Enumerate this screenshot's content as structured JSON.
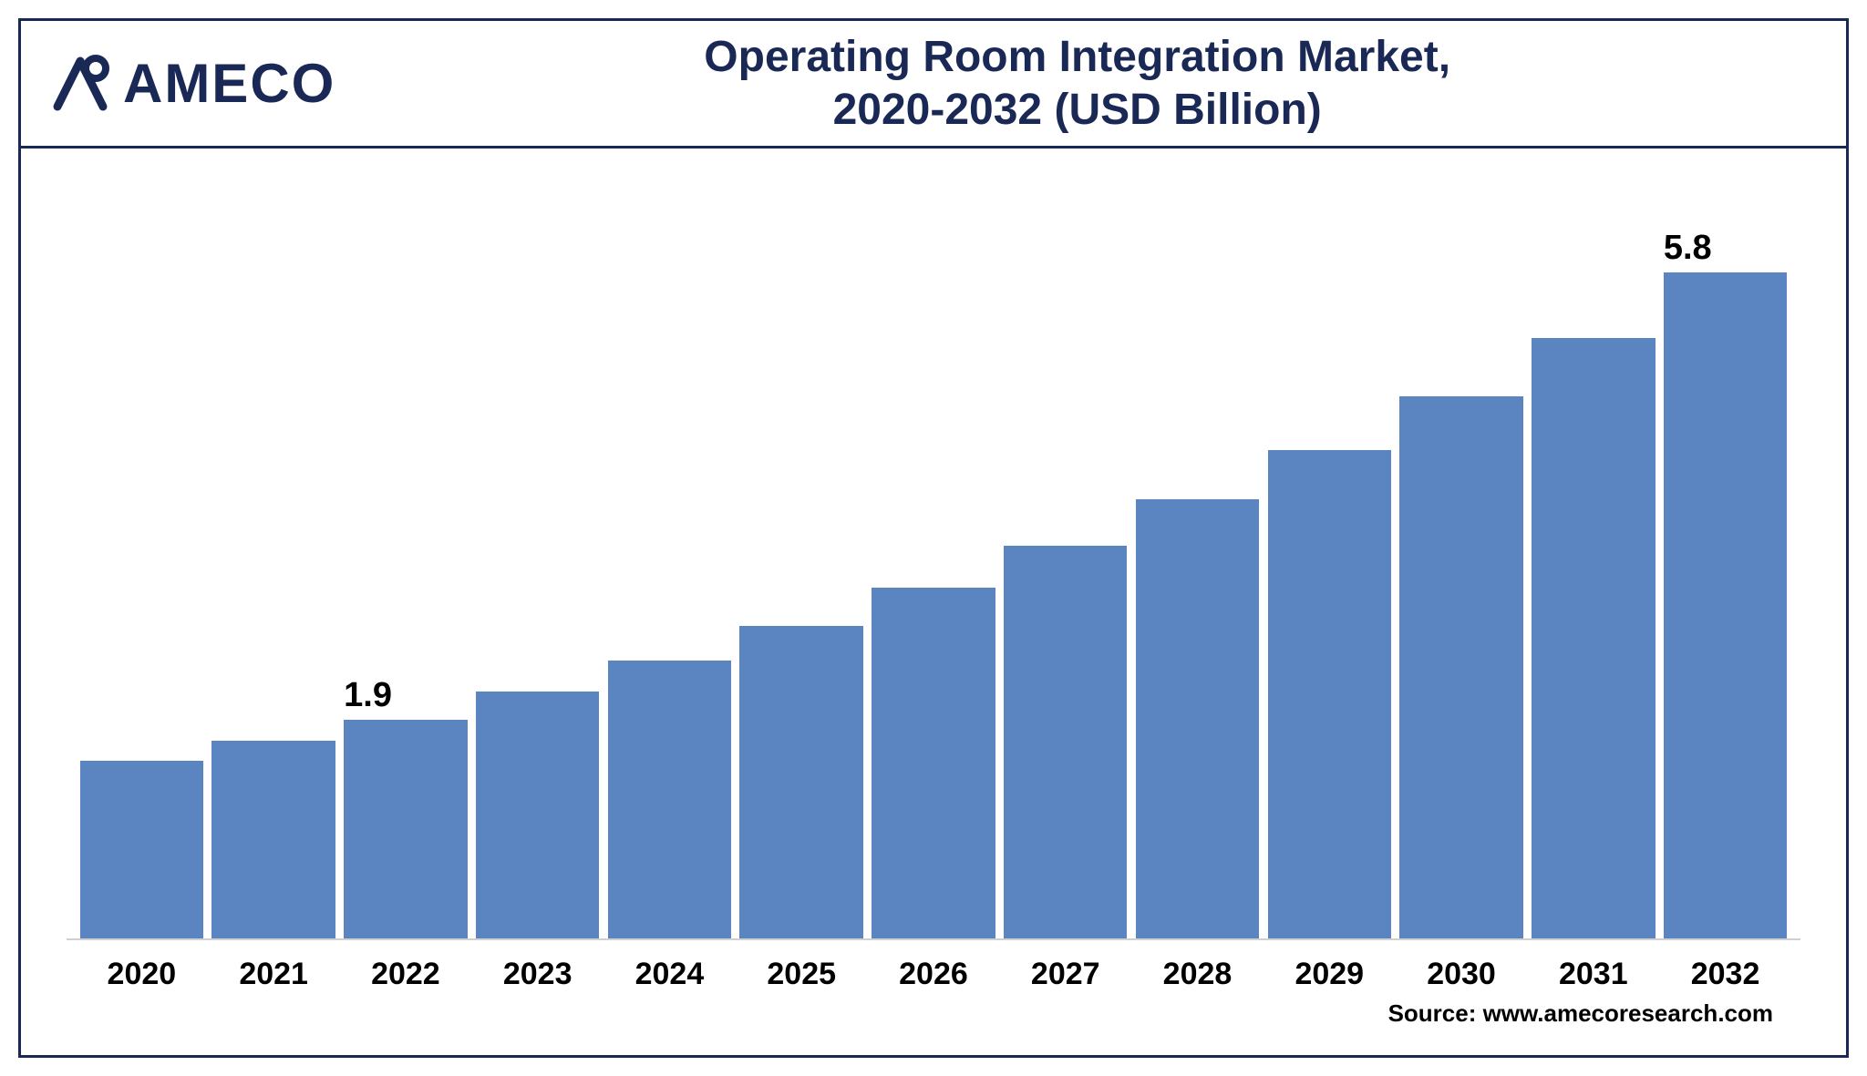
{
  "logo_text": "AMECO",
  "title_line1": "Operating Room Integration Market,",
  "title_line2": "2020-2032 (USD Billion)",
  "source_label": "Source: www.amecoresearch.com",
  "chart": {
    "type": "bar",
    "categories": [
      "2020",
      "2021",
      "2022",
      "2023",
      "2024",
      "2025",
      "2026",
      "2027",
      "2028",
      "2029",
      "2030",
      "2031",
      "2032"
    ],
    "values": [
      1.55,
      1.72,
      1.9,
      2.15,
      2.42,
      2.72,
      3.05,
      3.42,
      3.82,
      4.25,
      4.72,
      5.23,
      5.8
    ],
    "value_labels": [
      "",
      "",
      "1.9",
      "",
      "",
      "",
      "",
      "",
      "",
      "",
      "",
      "",
      "5.8"
    ],
    "bar_color": "#5b85c1",
    "ylim_max": 6.4,
    "background_color": "#ffffff",
    "axis_line_color": "#d0d0d0",
    "title_color": "#1a2855",
    "title_fontsize": 48,
    "tick_fontsize": 34,
    "tick_fontweight": 700,
    "label_fontsize": 38,
    "border_color": "#1a2855"
  },
  "logo": {
    "color": "#1a2855"
  }
}
